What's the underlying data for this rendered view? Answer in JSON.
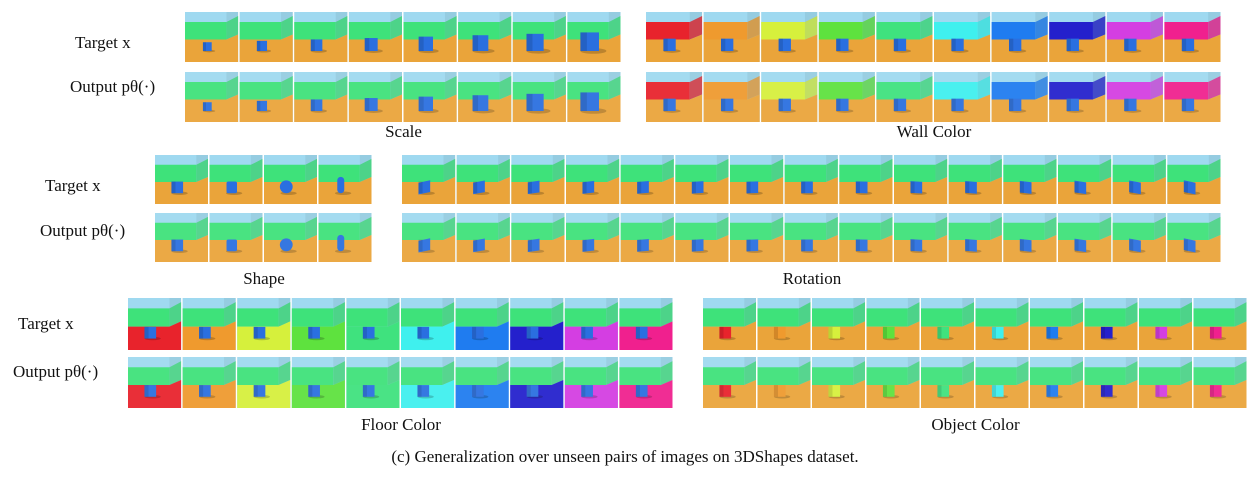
{
  "figure": {
    "panel_rows": [
      {
        "row_labels": [
          "Target x",
          "Output pθ(·)"
        ],
        "panels": [
          {
            "title": "Scale"
          },
          {
            "title": "Wall Color"
          }
        ]
      },
      {
        "row_labels": [
          "Target x",
          "Output pθ(·)"
        ],
        "panels": [
          {
            "title": "Shape"
          },
          {
            "title": "Rotation"
          }
        ]
      },
      {
        "row_labels": [
          "Target x",
          "Output pθ(·)"
        ],
        "panels": [
          {
            "title": "Floor Color"
          },
          {
            "title": "Object Color"
          }
        ]
      }
    ],
    "caption": "(c) Generalization over unseen pairs of images on 3DShapes dataset."
  }
}
